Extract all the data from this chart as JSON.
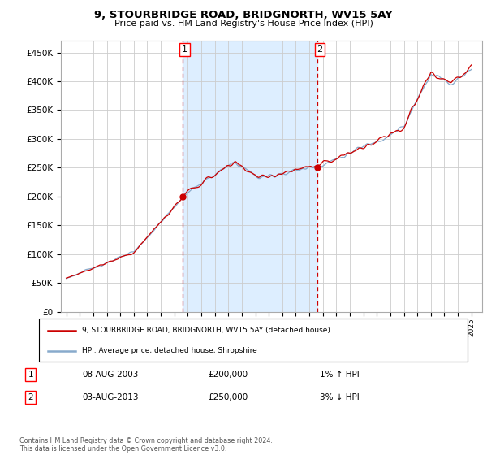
{
  "title": "9, STOURBRIDGE ROAD, BRIDGNORTH, WV15 5AY",
  "subtitle": "Price paid vs. HM Land Registry's House Price Index (HPI)",
  "ylabel_ticks": [
    "£0",
    "£50K",
    "£100K",
    "£150K",
    "£200K",
    "£250K",
    "£300K",
    "£350K",
    "£400K",
    "£450K"
  ],
  "ytick_values": [
    0,
    50000,
    100000,
    150000,
    200000,
    250000,
    300000,
    350000,
    400000,
    450000
  ],
  "ylim": [
    0,
    470000
  ],
  "purchase1": {
    "date": "08-AUG-2003",
    "year": 2003.6,
    "price": 200000,
    "label": "1",
    "hpi_change": "1% ↑ HPI"
  },
  "purchase2": {
    "date": "03-AUG-2013",
    "year": 2013.6,
    "price": 250000,
    "label": "2",
    "hpi_change": "3% ↓ HPI"
  },
  "legend_line1": "9, STOURBRIDGE ROAD, BRIDGNORTH, WV15 5AY (detached house)",
  "legend_line2": "HPI: Average price, detached house, Shropshire",
  "footer": "Contains HM Land Registry data © Crown copyright and database right 2024.\nThis data is licensed under the Open Government Licence v3.0.",
  "line_color_red": "#cc0000",
  "line_color_blue": "#88aacc",
  "background_color": "#ffffff",
  "shade_color": "#ddeeff",
  "grid_color": "#cccccc",
  "table_row1": [
    "1",
    "08-AUG-2003",
    "£200,000",
    "1% ↑ HPI"
  ],
  "table_row2": [
    "2",
    "03-AUG-2013",
    "£250,000",
    "3% ↓ HPI"
  ]
}
